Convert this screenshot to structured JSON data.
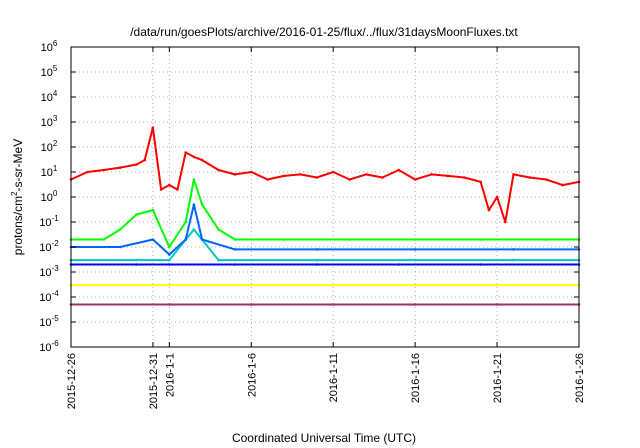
{
  "chart_data": {
    "type": "line",
    "title": "/data/run/goesPlots/archive/2016-01-25/flux/../flux/31daysMoonFluxes.txt",
    "xlabel": "Coordinated Universal Time (UTC)",
    "ylabel_parts": {
      "base": "protons/cm",
      "sup": "2",
      "rest": "-s-sr-MeV"
    },
    "y_scale": "log",
    "ylim": [
      1e-06,
      1000000.0
    ],
    "y_ticks": [
      {
        "mant": "10",
        "exp": "-6"
      },
      {
        "mant": "10",
        "exp": "-5"
      },
      {
        "mant": "10",
        "exp": "-4"
      },
      {
        "mant": "10",
        "exp": "-3"
      },
      {
        "mant": "10",
        "exp": "-2"
      },
      {
        "mant": "10",
        "exp": "-1"
      },
      {
        "mant": "10",
        "exp": "0"
      },
      {
        "mant": "10",
        "exp": "1"
      },
      {
        "mant": "10",
        "exp": "2"
      },
      {
        "mant": "10",
        "exp": "3"
      },
      {
        "mant": "10",
        "exp": "4"
      },
      {
        "mant": "10",
        "exp": "5"
      },
      {
        "mant": "10",
        "exp": "6"
      }
    ],
    "xlim": [
      "2015-12-26",
      "2016-01-26"
    ],
    "x_ticks": [
      "2015-12-26",
      "2015-12-31",
      "2016-1-1",
      "2016-1-6",
      "2016-1-11",
      "2016-1-16",
      "2016-1-21",
      "2016-1-26"
    ],
    "grid": true,
    "series": [
      {
        "color": "#ff0000",
        "x": [
          "2015-12-26",
          "2015-12-27",
          "2015-12-28",
          "2015-12-29",
          "2015-12-30",
          "2015-12-30T12",
          "2015-12-31",
          "2015-12-31T12",
          "2016-01-01",
          "2016-01-01T12",
          "2016-01-02",
          "2016-01-02T12",
          "2016-01-03",
          "2016-01-04",
          "2016-01-05",
          "2016-01-06",
          "2016-01-07",
          "2016-01-08",
          "2016-01-09",
          "2016-01-10",
          "2016-01-11",
          "2016-01-12",
          "2016-01-13",
          "2016-01-14",
          "2016-01-15",
          "2016-01-16",
          "2016-01-17",
          "2016-01-18",
          "2016-01-19",
          "2016-01-20",
          "2016-01-20T12",
          "2016-01-21",
          "2016-01-21T12",
          "2016-01-22",
          "2016-01-23",
          "2016-01-24",
          "2016-01-25",
          "2016-01-26"
        ],
        "y": [
          5,
          10,
          12,
          15,
          20,
          30,
          600,
          2,
          3,
          2,
          60,
          40,
          30,
          12,
          8,
          10,
          5,
          7,
          8,
          6,
          10,
          5,
          8,
          6,
          12,
          5,
          8,
          7,
          6,
          4,
          0.3,
          1,
          0.1,
          8,
          6,
          5,
          3,
          4
        ]
      },
      {
        "color": "#00ff00",
        "x": [
          "2015-12-26",
          "2015-12-28",
          "2015-12-29",
          "2015-12-30",
          "2015-12-31",
          "2016-01-01",
          "2016-01-02",
          "2016-01-02T12",
          "2016-01-03",
          "2016-01-04",
          "2016-01-05",
          "2016-01-08",
          "2016-01-12",
          "2016-01-16",
          "2016-01-20",
          "2016-01-24",
          "2016-01-26"
        ],
        "y": [
          0.02,
          0.02,
          0.05,
          0.2,
          0.3,
          0.01,
          0.1,
          5,
          0.5,
          0.05,
          0.02,
          0.02,
          0.02,
          0.02,
          0.02,
          0.02,
          0.02
        ]
      },
      {
        "color": "#00c8c8",
        "x": [
          "2015-12-26",
          "2015-12-30",
          "2016-01-01",
          "2016-01-02T12",
          "2016-01-04",
          "2016-01-10",
          "2016-01-16",
          "2016-01-22",
          "2016-01-26"
        ],
        "y": [
          0.003,
          0.003,
          0.003,
          0.05,
          0.003,
          0.003,
          0.003,
          0.003,
          0.003
        ]
      },
      {
        "color": "#0064ff",
        "x": [
          "2015-12-26",
          "2015-12-29",
          "2015-12-31",
          "2016-01-01",
          "2016-01-02",
          "2016-01-02T12",
          "2016-01-03",
          "2016-01-05",
          "2016-01-10",
          "2016-01-16",
          "2016-01-22",
          "2016-01-26"
        ],
        "y": [
          0.01,
          0.01,
          0.02,
          0.005,
          0.02,
          0.5,
          0.02,
          0.008,
          0.008,
          0.008,
          0.008,
          0.008
        ]
      },
      {
        "color": "#0000ff",
        "x": [
          "2015-12-26",
          "2015-12-30",
          "2016-01-01",
          "2016-01-05",
          "2016-01-10",
          "2016-01-15",
          "2016-01-20",
          "2016-01-26"
        ],
        "y": [
          0.002,
          0.002,
          0.002,
          0.002,
          0.002,
          0.002,
          0.002,
          0.002
        ]
      },
      {
        "color": "#ffff00",
        "x": [
          "2015-12-26",
          "2016-01-01",
          "2016-01-06",
          "2016-01-11",
          "2016-01-16",
          "2016-01-21",
          "2016-01-26"
        ],
        "y": [
          0.0003,
          0.0003,
          0.0003,
          0.0003,
          0.0003,
          0.0003,
          0.0003
        ]
      },
      {
        "color": "#993366",
        "x": [
          "2015-12-26",
          "2016-01-01",
          "2016-01-06",
          "2016-01-11",
          "2016-01-16",
          "2016-01-21",
          "2016-01-26"
        ],
        "y": [
          5e-05,
          5e-05,
          5e-05,
          5e-05,
          5e-05,
          5e-05,
          5e-05
        ]
      }
    ]
  }
}
